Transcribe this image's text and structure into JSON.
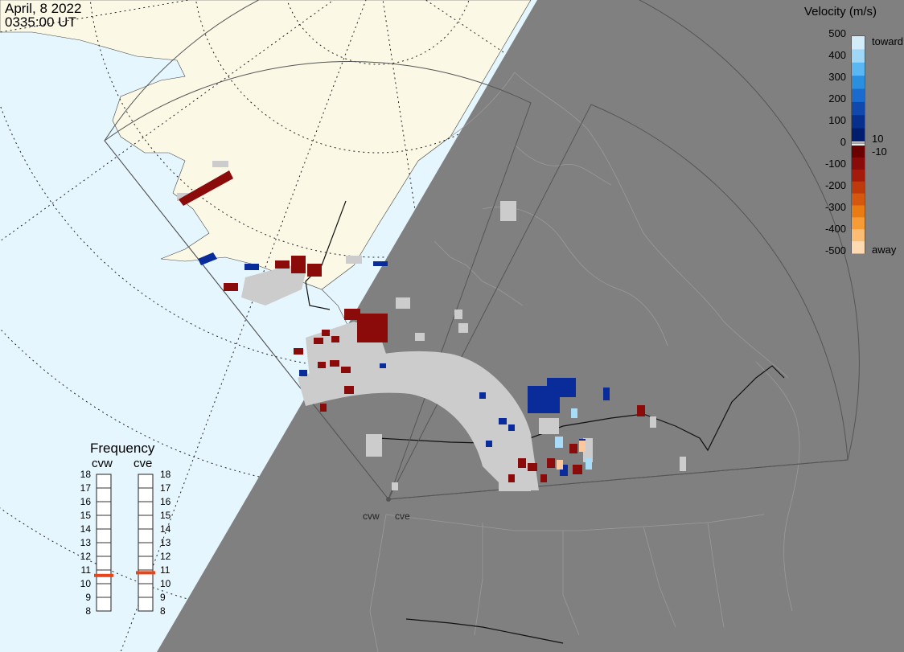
{
  "datetime": {
    "date": "April, 8 2022",
    "time": "0335:00 UT"
  },
  "legend": {
    "title": "Velocity (m/s)",
    "ticks": [
      "500",
      "400",
      "300",
      "200",
      "100",
      "0",
      "-100",
      "-200",
      "-300",
      "-400",
      "-500"
    ],
    "toward_label": "toward",
    "away_label": "away",
    "pos_threshold": "10",
    "neg_threshold": "-10",
    "colors_toward": [
      "#d2ecfa",
      "#9fd7f7",
      "#5ab7f1",
      "#2a8fdf",
      "#1a6ad0",
      "#1048ad",
      "#072f8d",
      "#011d6e"
    ],
    "colors_away": [
      "#6b0000",
      "#8b0a0a",
      "#a41a0b",
      "#be3a0c",
      "#d6580e",
      "#ea7a12",
      "#f69b35",
      "#fbbd74",
      "#fddab2"
    ]
  },
  "frequency": {
    "title": "Frequency",
    "radars": [
      {
        "name": "cvw",
        "level": 10.6
      },
      {
        "name": "cve",
        "level": 10.8
      }
    ],
    "scale": [
      "18",
      "17",
      "16",
      "15",
      "14",
      "13",
      "12",
      "11",
      "10",
      "9",
      "8"
    ],
    "marker_color": "#e8441a"
  },
  "radar_sites": [
    "cvw",
    "cve"
  ],
  "colors": {
    "ocean": "#e6f6fe",
    "land": "#fbf8e6",
    "night": "#808080",
    "ground_scatter": "#cccccc",
    "blue": "#0a2b9a",
    "red": "#8b0a0a"
  }
}
